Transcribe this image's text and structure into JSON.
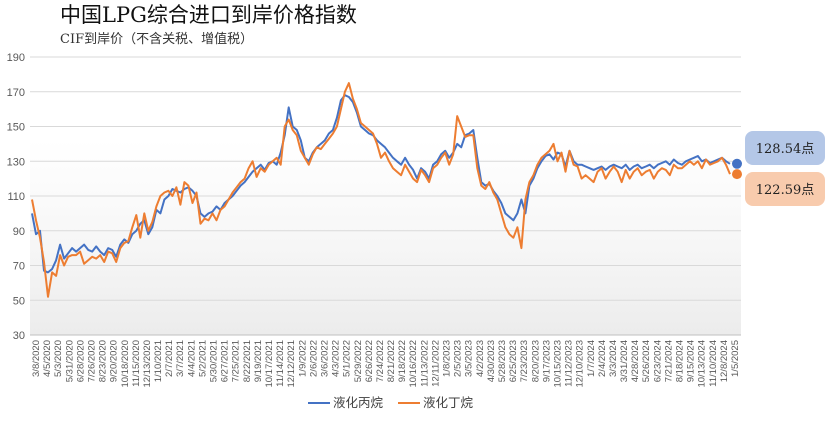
{
  "chart_data": {
    "type": "line",
    "title": "中国LPG综合进口到岸价格指数",
    "subtitle": "CIF到岸价（不含关税、增值税）",
    "ylim": [
      30,
      190
    ],
    "yticks": [
      30,
      50,
      70,
      90,
      110,
      130,
      150,
      170,
      190
    ],
    "x_tick_labels": [
      "3/8/2020",
      "4/5/2020",
      "5/3/2020",
      "5/31/2020",
      "6/28/2020",
      "7/26/2020",
      "8/23/2020",
      "9/20/2020",
      "10/18/2020",
      "11/15/2020",
      "12/13/2020",
      "1/10/2021",
      "2/7/2021",
      "3/7/2021",
      "4/4/2021",
      "5/2/2021",
      "5/30/2021",
      "6/27/2021",
      "7/25/2021",
      "8/22/2021",
      "9/19/2021",
      "10/17/2021",
      "11/14/2021",
      "12/12/2021",
      "1/9/2022",
      "2/6/2022",
      "3/6/2022",
      "4/3/2022",
      "5/1/2022",
      "5/29/2022",
      "6/26/2022",
      "7/24/2022",
      "8/21/2022",
      "9/18/2022",
      "10/16/2022",
      "11/13/2022",
      "12/11/2022",
      "1/8/2023",
      "2/5/2023",
      "3/5/2023",
      "4/2/2023",
      "4/30/2023",
      "5/28/2023",
      "6/25/2023",
      "7/23/2023",
      "8/20/2023",
      "9/17/2023",
      "10/15/2023",
      "11/12/2023",
      "12/10/2023",
      "1/7/2024",
      "2/4/2024",
      "3/3/2024",
      "3/31/2024",
      "4/28/2024",
      "5/26/2024",
      "6/23/2024",
      "7/21/2024",
      "8/18/2024",
      "9/15/2024",
      "10/13/2024",
      "11/10/2024",
      "12/8/2024",
      "1/5/2025"
    ],
    "x_tick_labels_visible": [
      "3/8/2020",
      "4/5/2020",
      "5/3/2020",
      "5/31/2020",
      "6/28/2020",
      "7/26/2020",
      "8/23/2020",
      "9/20/2020",
      "10/18/2020",
      "11/15/2020",
      "12/13/2020",
      "1/10/2021",
      "2/7/2021",
      "3/7/2021",
      "4/4/2021",
      "5/2/2021",
      "5/30/2021",
      "6/27/2021",
      "7/25/2021",
      "8/22/2021",
      "9/19/2021",
      "10/17/2021",
      "11/14/2021",
      "12/12/2021",
      "1/9/2022",
      "2/6/2022",
      "3/6/2022",
      "4/3/2022",
      "5/1/2022",
      "5/29/2022",
      "6/26/2022",
      "7/24/2022",
      "8/21/2022",
      "9/18/2022",
      "10/16/2022",
      "11/13/2022",
      "12/11/2022",
      "1/8/2023",
      "2/5/2023",
      "3/5/2023",
      "4/2/2023",
      "4/30/2023",
      "5/28/2023",
      "6/25/2023",
      "7/23/2023",
      "8/20/2023",
      "9/17/2023",
      "10/15/2023",
      "11/12/2023",
      "12/10/2023",
      "1/7/2024",
      "2/4/2024",
      "3/3/2024",
      "3/31/2024",
      "4/28/2024",
      "5/26/2024",
      "6/23/2024",
      "7/21/2024",
      "8/18/2024",
      "9/15/2024",
      "10/13/2024",
      "11/10/2024",
      "12/8/2024",
      "1/5/2025"
    ],
    "x_tick_labels_rendered": [
      "3/8/2020",
      "4/5/2020",
      "5/3/2020",
      "5/31/2020",
      "6/28/2020",
      "7/26/2020",
      "8/23/2020",
      "9/20/2020",
      "10/18/2020",
      "11/15/2020",
      "12/13/2020",
      "1/10/2021",
      "2/7/2021",
      "3/7/2021",
      "4/4/2021",
      "5/2/2021",
      "5/30/2021",
      "6/27/2021",
      "7/25/2021",
      "8/22/2021",
      "9/19/2021",
      "10/17/2021",
      "11/14/2021",
      "12/12/2021",
      "1/9/2022",
      "2/6/2022",
      "3/6/2022",
      "4/3/2022",
      "5/1/2022",
      "5/29/2022",
      "6/26/2022",
      "7/24/2022",
      "8/21/2022",
      "9/18/2022",
      "10/16/2022",
      "11/13/2022",
      "12/11/2022",
      "1/8/2023",
      "2/5/2023",
      "3/5/2023",
      "4/2/2023",
      "4/30/2023",
      "5/28/2023",
      "6/25/2023",
      "7/23/2023",
      "8/20/2023",
      "9/17/2023",
      "10/15/2023",
      "11/12/2023",
      "12/10/2023",
      "1/7/2024",
      "2/4/2024",
      "3/3/2024",
      "3/31/2024",
      "4/28/2024",
      "5/26/2024",
      "6/23/2024",
      "7/21/2024",
      "8/18/2024",
      "9/15/2024",
      "10/13/2024",
      "11/10/2024",
      "12/8/2024",
      "1/5/2025"
    ],
    "legend": [
      "液化丙烷",
      "液化丁烷"
    ],
    "series": [
      {
        "name": "液化丙烷",
        "color": "#4472c4",
        "final_value": 128.54,
        "final_label": "128.54点",
        "values": [
          100,
          88,
          90,
          67,
          66,
          68,
          73,
          82,
          74,
          77,
          80,
          78,
          80,
          82,
          79,
          78,
          81,
          78,
          76,
          80,
          79,
          75,
          82,
          85,
          83,
          88,
          90,
          94,
          96,
          88,
          92,
          102,
          100,
          108,
          110,
          114,
          113,
          112,
          114,
          115,
          113,
          110,
          100,
          98,
          100,
          101,
          104,
          102,
          106,
          108,
          110,
          113,
          116,
          118,
          121,
          124,
          126,
          128,
          125,
          129,
          130,
          128,
          135,
          145,
          161,
          150,
          148,
          142,
          132,
          130,
          135,
          138,
          140,
          142,
          146,
          148,
          155,
          165,
          168,
          167,
          164,
          158,
          150,
          148,
          146,
          145,
          142,
          140,
          138,
          135,
          132,
          130,
          128,
          132,
          128,
          125,
          120,
          126,
          124,
          120,
          128,
          130,
          134,
          136,
          132,
          135,
          140,
          138,
          145,
          146,
          148,
          132,
          118,
          116,
          117,
          113,
          110,
          106,
          100,
          98,
          96,
          100,
          108,
          100,
          116,
          120,
          126,
          130,
          133,
          134,
          131,
          135,
          134,
          127,
          136,
          130,
          128,
          128,
          127,
          126,
          125,
          126,
          127,
          125,
          127,
          128,
          127,
          126,
          128,
          125,
          127,
          128,
          126,
          127,
          128,
          126,
          128,
          129,
          130,
          128,
          131,
          129,
          128,
          130,
          131,
          132,
          133,
          130,
          131,
          129,
          130,
          131,
          132,
          130,
          128.54
        ]
      },
      {
        "name": "液化丁烷",
        "color": "#ed7d31",
        "final_value": 122.59,
        "final_label": "122.59点",
        "values": [
          108,
          96,
          86,
          72,
          52,
          66,
          64,
          76,
          70,
          75,
          76,
          76,
          78,
          71,
          73,
          75,
          74,
          76,
          72,
          78,
          77,
          72,
          80,
          83,
          84,
          92,
          99,
          86,
          100,
          90,
          95,
          104,
          110,
          112,
          113,
          110,
          115,
          105,
          118,
          116,
          106,
          112,
          94,
          97,
          96,
          100,
          96,
          102,
          104,
          108,
          112,
          115,
          118,
          120,
          126,
          130,
          121,
          126,
          124,
          128,
          130,
          132,
          128,
          150,
          154,
          148,
          145,
          136,
          132,
          128,
          134,
          138,
          137,
          140,
          143,
          146,
          150,
          160,
          170,
          175,
          166,
          160,
          152,
          150,
          148,
          146,
          140,
          132,
          135,
          130,
          126,
          124,
          122,
          128,
          124,
          120,
          118,
          125,
          122,
          118,
          126,
          128,
          132,
          135,
          128,
          134,
          156,
          150,
          144,
          145,
          145,
          126,
          116,
          114,
          118,
          112,
          108,
          100,
          92,
          88,
          86,
          92,
          80,
          108,
          118,
          122,
          128,
          132,
          134,
          136,
          140,
          130,
          135,
          124,
          136,
          128,
          127,
          120,
          122,
          120,
          118,
          124,
          126,
          120,
          124,
          127,
          124,
          118,
          125,
          120,
          124,
          126,
          122,
          124,
          125,
          120,
          124,
          126,
          125,
          122,
          128,
          126,
          126,
          128,
          130,
          128,
          130,
          126,
          131,
          128,
          129,
          130,
          132,
          128,
          122.59
        ]
      }
    ]
  }
}
